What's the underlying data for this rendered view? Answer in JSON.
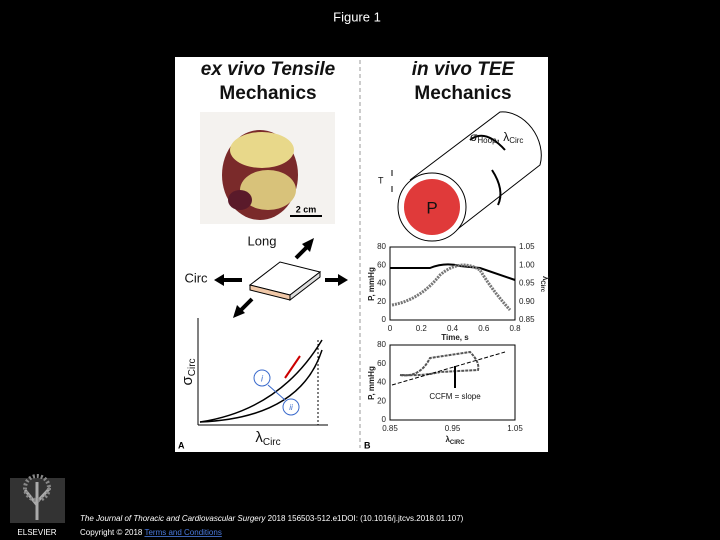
{
  "slide": {
    "title": "Figure 1",
    "panel_a": {
      "heading_line1": "ex vivo Tensile",
      "heading_line2": "Mechanics",
      "scale": "2 cm",
      "long": "Long",
      "circ": "Circ",
      "y_label": {
        "symbol": "σ",
        "sub": "Circ"
      },
      "x_label": {
        "symbol": "λ",
        "sub": "Circ"
      },
      "marker_i": "i",
      "marker_ii": "ii",
      "letter": "A"
    },
    "panel_b": {
      "heading_line1": "in vivo TEE",
      "heading_line2": "Mechanics",
      "stress_label": {
        "sigma": "σ",
        "sigma_sub": "Hoop",
        "sep": ", ",
        "lambda": "λ",
        "lambda_sub": "Circ"
      },
      "thickness": "T",
      "pressure": "P",
      "top_plot": {
        "y_ticks": [
          "80",
          "60",
          "40",
          "20",
          "0"
        ],
        "y2_ticks": [
          "1.05",
          "1.00",
          "0.95",
          "0.90",
          "0.85"
        ],
        "x_ticks": [
          "0",
          "0.2",
          "0.4",
          "0.6",
          "0.8"
        ],
        "x_label": "Time, s",
        "y_label": "P, mmHg",
        "y2_label": {
          "symbol": "λ",
          "sub": "Circ"
        }
      },
      "bottom_plot": {
        "y_ticks": [
          "80",
          "60",
          "40",
          "20",
          "0"
        ],
        "x_ticks": [
          "0.85",
          "0.95",
          "1.05"
        ],
        "x_label": {
          "symbol": "λ",
          "sub": "CIRC"
        },
        "y_label": "P, mmHg",
        "annotation": "CCFM = slope"
      },
      "letter": "B"
    },
    "footer": {
      "publisher": "ELSEVIER",
      "journal": "The Journal of Thoracic and Cardiovascular Surgery",
      "citation": " 2018 156503-512.e1DOI: (10.1016/j.jtcvs.2018.01.107) ",
      "copyright": "Copyright © 2018 ",
      "terms": "Terms and Conditions"
    }
  }
}
